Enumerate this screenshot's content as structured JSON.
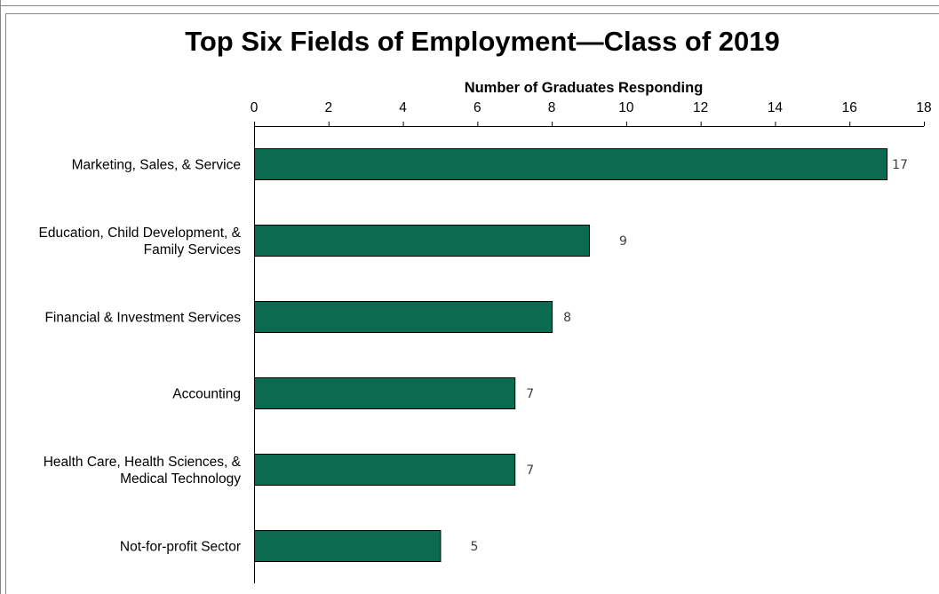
{
  "chart_data": {
    "type": "bar",
    "orientation": "horizontal",
    "title": "Top Six Fields of Employment—Class of 2019",
    "xlabel": "Number of Graduates Responding",
    "ylabel": "",
    "xlim": [
      0,
      18
    ],
    "xticks": [
      0,
      2,
      4,
      6,
      8,
      10,
      12,
      14,
      16,
      18
    ],
    "x_axis_position": "top",
    "grid": false,
    "legend": "none",
    "bar_color": "#0b6b50",
    "categories": [
      [
        "Marketing, Sales, & Service"
      ],
      [
        "Education, Child Development, &",
        "Family Services"
      ],
      [
        "Financial & Investment Services"
      ],
      [
        "Accounting"
      ],
      [
        "Health Care, Health Sciences, &",
        "Medical Technology"
      ],
      [
        "Not-for-profit Sector"
      ]
    ],
    "values": [
      17,
      9,
      8,
      7,
      7,
      5
    ],
    "data_labels": [
      "17",
      "9",
      "8",
      "7",
      "7",
      "5"
    ]
  }
}
